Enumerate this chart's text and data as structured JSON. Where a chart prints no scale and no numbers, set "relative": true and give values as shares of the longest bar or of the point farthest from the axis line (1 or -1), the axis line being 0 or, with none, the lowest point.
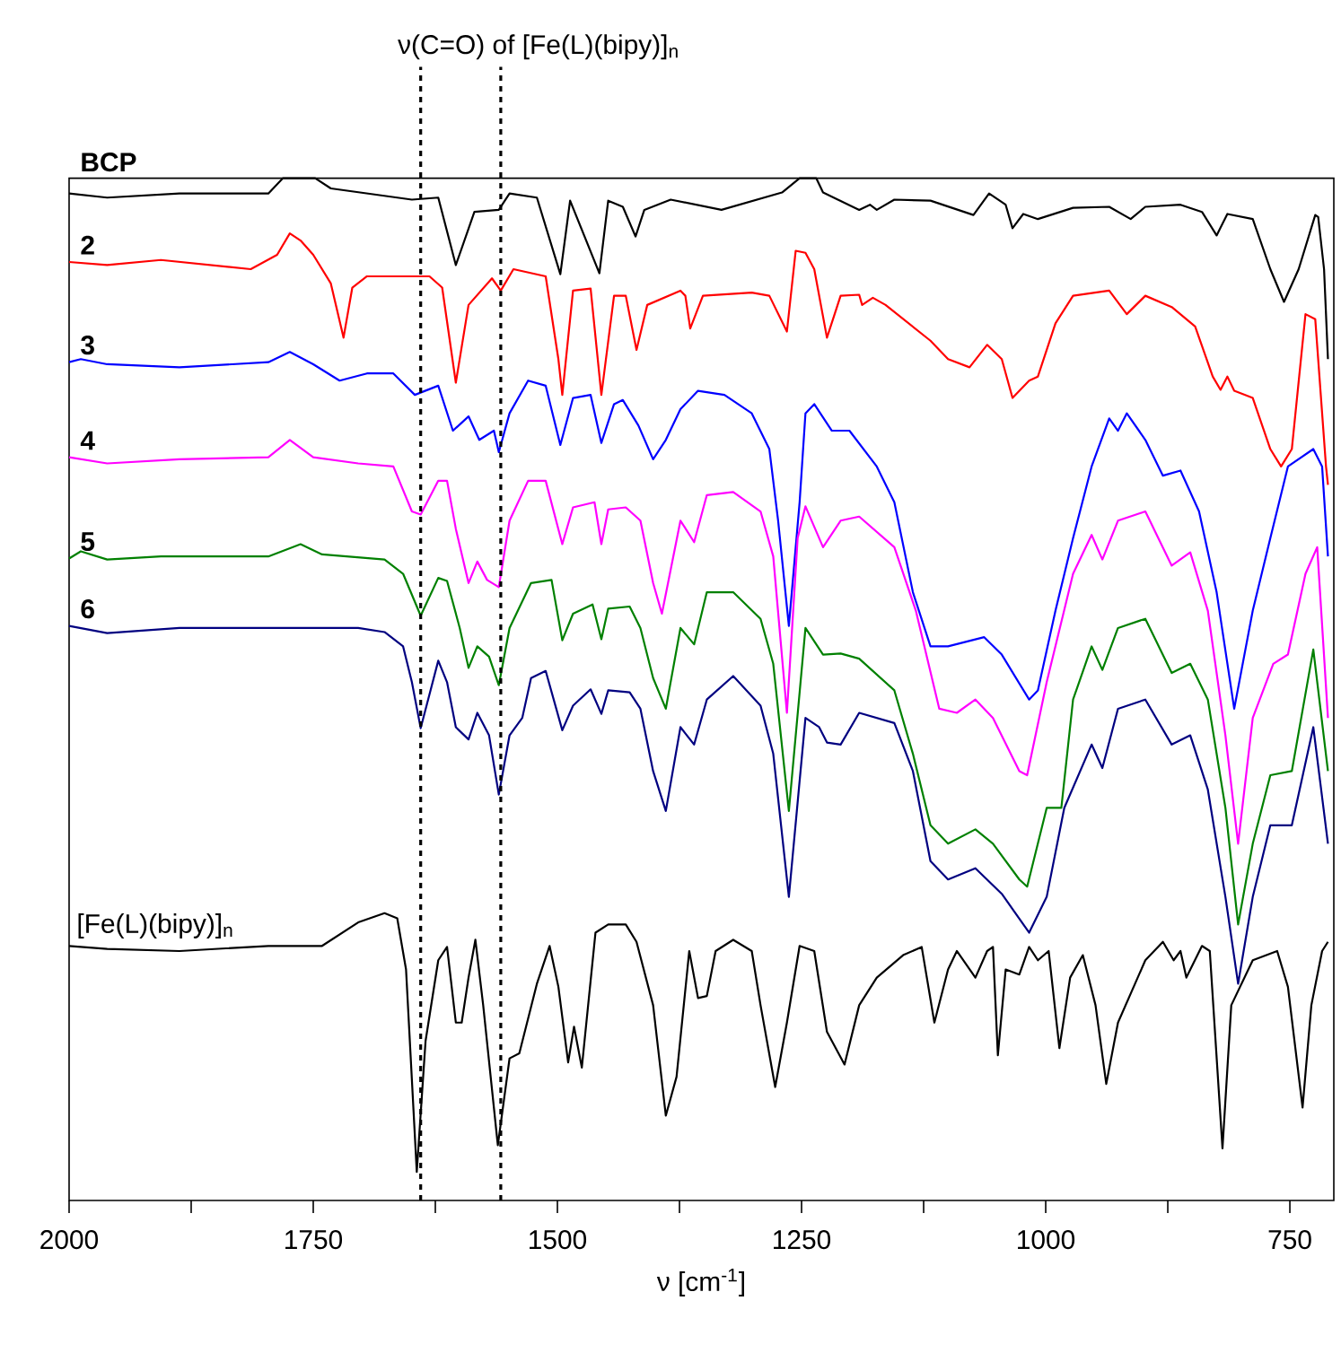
{
  "chart_data": {
    "type": "line",
    "relative": true,
    "title": "ν(C=O) of [Fe(L)(bipy)]$_{n}$",
    "xlabel": "ν [cm$^{-1}$]",
    "xlim": [
      2000,
      705
    ],
    "xticks": [
      2000,
      {
        "value": 1875,
        "label": null
      },
      1750,
      {
        "value": 1625,
        "label": null
      },
      1500,
      {
        "value": 1375,
        "label": null
      },
      1250,
      {
        "value": 1125,
        "label": null
      },
      1000,
      {
        "value": 875,
        "label": null
      },
      750
    ],
    "tick_labels": "x",
    "marker": "none",
    "line_style": "solid",
    "ref_lines": [
      {
        "axis": "x",
        "value": 1640,
        "color": "#000000",
        "line_style": "dotted"
      },
      {
        "axis": "x",
        "value": 1558,
        "color": "#000000",
        "line_style": "dotted"
      }
    ],
    "series": [
      {
        "name": "BCP",
        "color": "#000000",
        "x": [
          2000,
          1961,
          1887,
          1796,
          1781,
          1748,
          1732,
          1649,
          1622,
          1604,
          1585,
          1560,
          1549,
          1521,
          1497,
          1487,
          1457,
          1448,
          1433,
          1420,
          1411,
          1384,
          1332,
          1270,
          1252,
          1235,
          1228,
          1191,
          1180,
          1173,
          1155,
          1118,
          1074,
          1058,
          1041,
          1034,
          1023,
          1008,
          972,
          935,
          913,
          898,
          862,
          840,
          825,
          814,
          788,
          770,
          756,
          741,
          724,
          721,
          715,
          711
        ],
        "values": [
          0.985,
          0.981,
          0.985,
          0.985,
          1,
          1,
          0.99,
          0.979,
          0.981,
          0.915,
          0.967,
          0.969,
          0.985,
          0.981,
          0.906,
          0.978,
          0.907,
          0.978,
          0.972,
          0.943,
          0.969,
          0.979,
          0.969,
          0.986,
          1,
          1,
          0.986,
          0.969,
          0.974,
          0.969,
          0.979,
          0.978,
          0.964,
          0.985,
          0.974,
          0.951,
          0.965,
          0.96,
          0.971,
          0.972,
          0.96,
          0.972,
          0.974,
          0.967,
          0.944,
          0.965,
          0.96,
          0.911,
          0.879,
          0.911,
          0.964,
          0.962,
          0.911,
          0.823
        ]
      },
      {
        "name": "2",
        "color": "#ff0000",
        "x": [
          2000,
          1961,
          1906,
          1814,
          1787,
          1774,
          1763,
          1750,
          1732,
          1719,
          1710,
          1695,
          1631,
          1618,
          1604,
          1591,
          1567,
          1558,
          1545,
          1512,
          1499,
          1495,
          1484,
          1466,
          1455,
          1442,
          1430,
          1419,
          1408,
          1374,
          1369,
          1364,
          1351,
          1301,
          1283,
          1265,
          1256,
          1246,
          1237,
          1224,
          1210,
          1191,
          1188,
          1177,
          1164,
          1118,
          1100,
          1078,
          1060,
          1045,
          1034,
          1017,
          1008,
          990,
          972,
          935,
          917,
          898,
          871,
          847,
          829,
          821,
          814,
          807,
          788,
          770,
          759,
          748,
          734,
          724,
          713,
          711
        ],
        "values": [
          0.918,
          0.915,
          0.92,
          0.911,
          0.925,
          0.946,
          0.939,
          0.925,
          0.897,
          0.844,
          0.893,
          0.904,
          0.904,
          0.893,
          0.8,
          0.876,
          0.902,
          0.89,
          0.911,
          0.904,
          0.823,
          0.788,
          0.89,
          0.892,
          0.788,
          0.885,
          0.885,
          0.832,
          0.876,
          0.89,
          0.885,
          0.853,
          0.885,
          0.888,
          0.885,
          0.85,
          0.929,
          0.927,
          0.911,
          0.844,
          0.885,
          0.886,
          0.876,
          0.883,
          0.876,
          0.841,
          0.823,
          0.815,
          0.837,
          0.823,
          0.785,
          0.802,
          0.806,
          0.858,
          0.885,
          0.89,
          0.867,
          0.885,
          0.874,
          0.855,
          0.806,
          0.793,
          0.806,
          0.792,
          0.785,
          0.735,
          0.718,
          0.735,
          0.867,
          0.862,
          0.718,
          0.7
        ]
      },
      {
        "name": "3",
        "color": "#0000ff",
        "x": [
          2000,
          1988,
          1961,
          1887,
          1796,
          1774,
          1750,
          1723,
          1695,
          1668,
          1646,
          1622,
          1607,
          1591,
          1580,
          1565,
          1560,
          1549,
          1530,
          1512,
          1497,
          1484,
          1466,
          1455,
          1442,
          1433,
          1417,
          1402,
          1389,
          1374,
          1356,
          1329,
          1301,
          1283,
          1274,
          1263,
          1252,
          1246,
          1237,
          1219,
          1201,
          1173,
          1155,
          1136,
          1118,
          1100,
          1063,
          1045,
          1017,
          1008,
          990,
          972,
          953,
          935,
          926,
          917,
          898,
          880,
          862,
          843,
          825,
          807,
          788,
          770,
          752,
          726,
          717,
          711
        ],
        "values": [
          0.82,
          0.823,
          0.818,
          0.815,
          0.82,
          0.83,
          0.818,
          0.802,
          0.809,
          0.809,
          0.788,
          0.797,
          0.753,
          0.767,
          0.744,
          0.753,
          0.732,
          0.77,
          0.802,
          0.797,
          0.739,
          0.785,
          0.788,
          0.741,
          0.779,
          0.783,
          0.758,
          0.725,
          0.744,
          0.774,
          0.792,
          0.788,
          0.77,
          0.735,
          0.665,
          0.562,
          0.683,
          0.77,
          0.779,
          0.753,
          0.753,
          0.718,
          0.683,
          0.595,
          0.542,
          0.542,
          0.551,
          0.534,
          0.49,
          0.499,
          0.577,
          0.648,
          0.718,
          0.765,
          0.753,
          0.77,
          0.744,
          0.709,
          0.714,
          0.674,
          0.595,
          0.481,
          0.577,
          0.648,
          0.718,
          0.735,
          0.718,
          0.63
        ]
      },
      {
        "name": "4",
        "color": "#ff00ff",
        "x": [
          2000,
          1961,
          1887,
          1796,
          1774,
          1750,
          1704,
          1668,
          1649,
          1640,
          1622,
          1613,
          1604,
          1591,
          1582,
          1572,
          1560,
          1549,
          1530,
          1512,
          1495,
          1484,
          1462,
          1455,
          1448,
          1430,
          1415,
          1402,
          1393,
          1374,
          1360,
          1347,
          1320,
          1292,
          1279,
          1265,
          1254,
          1246,
          1228,
          1210,
          1191,
          1155,
          1133,
          1109,
          1091,
          1072,
          1054,
          1027,
          1019,
          999,
          972,
          953,
          942,
          926,
          898,
          871,
          852,
          834,
          816,
          803,
          788,
          767,
          752,
          734,
          722,
          711
        ],
        "values": [
          0.727,
          0.721,
          0.725,
          0.727,
          0.744,
          0.727,
          0.721,
          0.718,
          0.674,
          0.671,
          0.704,
          0.704,
          0.657,
          0.604,
          0.625,
          0.607,
          0.6,
          0.665,
          0.704,
          0.704,
          0.642,
          0.678,
          0.683,
          0.642,
          0.676,
          0.678,
          0.665,
          0.604,
          0.574,
          0.665,
          0.644,
          0.69,
          0.693,
          0.674,
          0.63,
          0.477,
          0.648,
          0.679,
          0.639,
          0.665,
          0.669,
          0.639,
          0.577,
          0.481,
          0.477,
          0.49,
          0.472,
          0.42,
          0.416,
          0.507,
          0.613,
          0.651,
          0.627,
          0.665,
          0.674,
          0.621,
          0.634,
          0.577,
          0.455,
          0.349,
          0.472,
          0.525,
          0.534,
          0.613,
          0.639,
          0.472
        ]
      },
      {
        "name": "5",
        "color": "#008000",
        "x": [
          2000,
          1988,
          1961,
          1906,
          1796,
          1763,
          1741,
          1677,
          1658,
          1640,
          1622,
          1613,
          1600,
          1591,
          1582,
          1570,
          1560,
          1549,
          1527,
          1506,
          1495,
          1484,
          1464,
          1455,
          1448,
          1426,
          1415,
          1402,
          1389,
          1374,
          1360,
          1347,
          1320,
          1292,
          1279,
          1263,
          1246,
          1228,
          1210,
          1191,
          1155,
          1136,
          1118,
          1100,
          1072,
          1054,
          1027,
          1019,
          999,
          984,
          972,
          953,
          942,
          926,
          898,
          871,
          852,
          834,
          816,
          803,
          788,
          770,
          748,
          726,
          711
        ],
        "values": [
          0.628,
          0.635,
          0.627,
          0.63,
          0.63,
          0.642,
          0.632,
          0.627,
          0.613,
          0.572,
          0.609,
          0.606,
          0.56,
          0.521,
          0.542,
          0.532,
          0.504,
          0.56,
          0.604,
          0.607,
          0.548,
          0.574,
          0.583,
          0.549,
          0.579,
          0.581,
          0.56,
          0.511,
          0.481,
          0.56,
          0.544,
          0.595,
          0.595,
          0.569,
          0.525,
          0.381,
          0.56,
          0.534,
          0.535,
          0.53,
          0.499,
          0.437,
          0.367,
          0.349,
          0.363,
          0.349,
          0.314,
          0.307,
          0.384,
          0.384,
          0.49,
          0.542,
          0.519,
          0.56,
          0.569,
          0.516,
          0.525,
          0.49,
          0.384,
          0.27,
          0.349,
          0.416,
          0.42,
          0.539,
          0.42
        ]
      },
      {
        "name": "6",
        "color": "#000080",
        "x": [
          2000,
          1961,
          1887,
          1796,
          1704,
          1677,
          1658,
          1649,
          1640,
          1622,
          1613,
          1604,
          1591,
          1582,
          1570,
          1560,
          1549,
          1536,
          1527,
          1512,
          1495,
          1484,
          1466,
          1455,
          1448,
          1426,
          1415,
          1402,
          1389,
          1374,
          1360,
          1347,
          1320,
          1292,
          1279,
          1263,
          1246,
          1232,
          1224,
          1210,
          1191,
          1155,
          1136,
          1118,
          1100,
          1072,
          1045,
          1017,
          999,
          981,
          953,
          942,
          926,
          898,
          871,
          852,
          834,
          816,
          803,
          788,
          770,
          748,
          726,
          711
        ],
        "values": [
          0.562,
          0.555,
          0.56,
          0.56,
          0.56,
          0.556,
          0.542,
          0.507,
          0.462,
          0.528,
          0.507,
          0.463,
          0.451,
          0.477,
          0.455,
          0.397,
          0.455,
          0.472,
          0.511,
          0.518,
          0.46,
          0.484,
          0.5,
          0.476,
          0.499,
          0.497,
          0.481,
          0.42,
          0.381,
          0.463,
          0.446,
          0.49,
          0.513,
          0.484,
          0.437,
          0.297,
          0.472,
          0.463,
          0.448,
          0.446,
          0.477,
          0.467,
          0.42,
          0.332,
          0.314,
          0.325,
          0.3,
          0.262,
          0.297,
          0.384,
          0.446,
          0.423,
          0.481,
          0.49,
          0.446,
          0.455,
          0.402,
          0.297,
          0.212,
          0.297,
          0.367,
          0.367,
          0.463,
          0.349
        ]
      },
      {
        "name": "[Fe(L)(bipy)]$_{n}$",
        "color": "#000000",
        "x": [
          2000,
          1961,
          1887,
          1796,
          1741,
          1704,
          1677,
          1664,
          1655,
          1644,
          1635,
          1622,
          1613,
          1604,
          1598,
          1591,
          1584,
          1576,
          1561,
          1549,
          1539,
          1521,
          1508,
          1499,
          1489,
          1483,
          1475,
          1461,
          1448,
          1430,
          1419,
          1402,
          1389,
          1378,
          1365,
          1356,
          1347,
          1338,
          1320,
          1301,
          1292,
          1277,
          1265,
          1252,
          1237,
          1224,
          1206,
          1191,
          1173,
          1146,
          1127,
          1114,
          1100,
          1091,
          1072,
          1060,
          1054,
          1049,
          1041,
          1027,
          1017,
          1008,
          997,
          986,
          975,
          962,
          949,
          938,
          926,
          898,
          880,
          869,
          862,
          856,
          840,
          832,
          819,
          810,
          788,
          763,
          752,
          737,
          728,
          717,
          711
        ],
        "values": [
          0.249,
          0.246,
          0.244,
          0.249,
          0.249,
          0.272,
          0.281,
          0.276,
          0.226,
          0.028,
          0.156,
          0.235,
          0.248,
          0.174,
          0.174,
          0.218,
          0.255,
          0.191,
          0.054,
          0.139,
          0.144,
          0.212,
          0.249,
          0.209,
          0.135,
          0.17,
          0.13,
          0.262,
          0.27,
          0.27,
          0.253,
          0.191,
          0.083,
          0.121,
          0.244,
          0.198,
          0.2,
          0.244,
          0.255,
          0.244,
          0.191,
          0.111,
          0.174,
          0.249,
          0.244,
          0.165,
          0.133,
          0.191,
          0.218,
          0.24,
          0.248,
          0.174,
          0.226,
          0.244,
          0.218,
          0.244,
          0.248,
          0.142,
          0.226,
          0.221,
          0.248,
          0.235,
          0.244,
          0.149,
          0.218,
          0.24,
          0.191,
          0.114,
          0.174,
          0.235,
          0.253,
          0.235,
          0.244,
          0.218,
          0.249,
          0.244,
          0.051,
          0.191,
          0.235,
          0.244,
          0.209,
          0.091,
          0.191,
          0.244,
          0.253
        ]
      }
    ]
  }
}
